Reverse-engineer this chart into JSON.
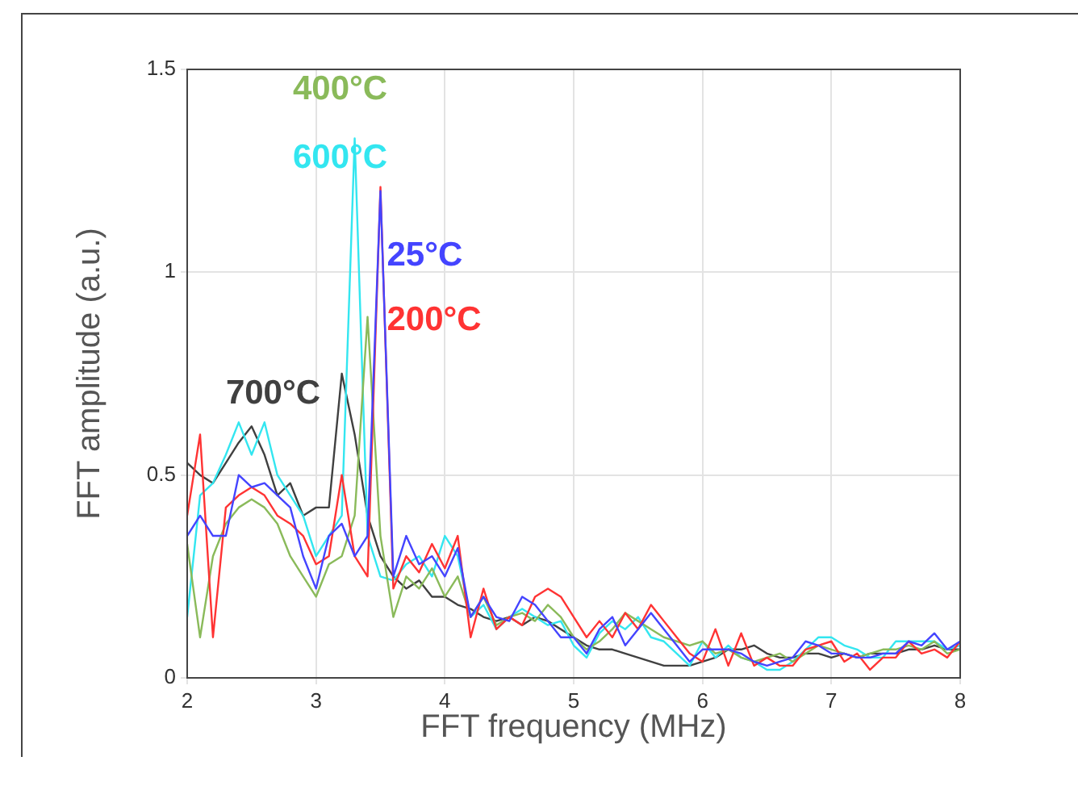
{
  "chart_data": {
    "type": "line",
    "xlabel": "FFT frequency (MHz)",
    "ylabel": "FFT amplitude (a.u.)",
    "x": [
      2.0,
      2.1,
      2.2,
      2.3,
      2.4,
      2.5,
      2.6,
      2.7,
      2.8,
      2.9,
      3.0,
      3.1,
      3.2,
      3.3,
      3.4,
      3.5,
      3.6,
      3.7,
      3.8,
      3.9,
      4.0,
      4.1,
      4.2,
      4.3,
      4.4,
      4.5,
      4.6,
      4.7,
      4.8,
      4.9,
      5.0,
      5.1,
      5.2,
      5.3,
      5.4,
      5.5,
      5.6,
      5.7,
      5.8,
      5.9,
      6.0,
      6.1,
      6.2,
      6.3,
      6.4,
      6.5,
      6.6,
      6.7,
      6.8,
      6.9,
      7.0,
      7.1,
      7.2,
      7.3,
      7.4,
      7.5,
      7.6,
      7.7,
      7.8,
      7.9,
      8.0
    ],
    "series": [
      {
        "name": "25°C",
        "color": "#4444ff",
        "values": [
          0.35,
          0.4,
          0.35,
          0.35,
          0.5,
          0.47,
          0.48,
          0.45,
          0.42,
          0.3,
          0.22,
          0.35,
          0.38,
          0.3,
          0.35,
          1.2,
          0.25,
          0.35,
          0.28,
          0.3,
          0.25,
          0.32,
          0.15,
          0.2,
          0.15,
          0.14,
          0.2,
          0.18,
          0.14,
          0.1,
          0.1,
          0.06,
          0.12,
          0.15,
          0.08,
          0.12,
          0.16,
          0.12,
          0.08,
          0.04,
          0.07,
          0.07,
          0.07,
          0.06,
          0.04,
          0.03,
          0.04,
          0.05,
          0.09,
          0.08,
          0.06,
          0.06,
          0.05,
          0.05,
          0.06,
          0.06,
          0.09,
          0.08,
          0.11,
          0.07,
          0.09
        ]
      },
      {
        "name": "200°C",
        "color": "#ff3333",
        "values": [
          0.4,
          0.6,
          0.1,
          0.42,
          0.45,
          0.47,
          0.45,
          0.4,
          0.38,
          0.35,
          0.28,
          0.3,
          0.5,
          0.3,
          0.25,
          1.21,
          0.22,
          0.3,
          0.26,
          0.33,
          0.27,
          0.35,
          0.1,
          0.22,
          0.12,
          0.15,
          0.13,
          0.2,
          0.22,
          0.2,
          0.15,
          0.1,
          0.14,
          0.1,
          0.16,
          0.12,
          0.18,
          0.14,
          0.1,
          0.06,
          0.04,
          0.12,
          0.03,
          0.11,
          0.03,
          0.05,
          0.03,
          0.03,
          0.07,
          0.08,
          0.09,
          0.04,
          0.06,
          0.02,
          0.05,
          0.05,
          0.09,
          0.06,
          0.07,
          0.05,
          0.09
        ]
      },
      {
        "name": "400°C",
        "color": "#8aba5a",
        "values": [
          0.33,
          0.1,
          0.3,
          0.38,
          0.42,
          0.44,
          0.42,
          0.38,
          0.3,
          0.25,
          0.2,
          0.28,
          0.3,
          0.4,
          0.89,
          0.35,
          0.15,
          0.25,
          0.22,
          0.27,
          0.2,
          0.25,
          0.15,
          0.2,
          0.13,
          0.15,
          0.16,
          0.14,
          0.18,
          0.15,
          0.1,
          0.07,
          0.09,
          0.12,
          0.16,
          0.14,
          0.12,
          0.1,
          0.09,
          0.08,
          0.09,
          0.06,
          0.07,
          0.05,
          0.04,
          0.05,
          0.06,
          0.04,
          0.06,
          0.08,
          0.07,
          0.06,
          0.05,
          0.06,
          0.07,
          0.07,
          0.08,
          0.07,
          0.09,
          0.06,
          0.07
        ]
      },
      {
        "name": "600°C",
        "color": "#33e6f0",
        "values": [
          0.15,
          0.45,
          0.48,
          0.55,
          0.63,
          0.55,
          0.63,
          0.5,
          0.45,
          0.4,
          0.3,
          0.35,
          0.4,
          1.33,
          0.35,
          0.25,
          0.24,
          0.28,
          0.3,
          0.25,
          0.35,
          0.3,
          0.15,
          0.18,
          0.12,
          0.15,
          0.17,
          0.15,
          0.13,
          0.14,
          0.08,
          0.05,
          0.11,
          0.14,
          0.12,
          0.15,
          0.1,
          0.09,
          0.06,
          0.03,
          0.09,
          0.05,
          0.08,
          0.05,
          0.04,
          0.02,
          0.02,
          0.04,
          0.07,
          0.1,
          0.1,
          0.08,
          0.07,
          0.05,
          0.05,
          0.09,
          0.09,
          0.09,
          0.09,
          0.07,
          0.08
        ]
      },
      {
        "name": "700°C",
        "color": "#404040",
        "values": [
          0.53,
          0.5,
          0.48,
          0.53,
          0.58,
          0.62,
          0.55,
          0.45,
          0.48,
          0.4,
          0.42,
          0.42,
          0.75,
          0.6,
          0.4,
          0.3,
          0.25,
          0.22,
          0.24,
          0.2,
          0.2,
          0.18,
          0.17,
          0.15,
          0.14,
          0.15,
          0.13,
          0.15,
          0.14,
          0.12,
          0.1,
          0.08,
          0.07,
          0.07,
          0.06,
          0.05,
          0.04,
          0.03,
          0.03,
          0.03,
          0.04,
          0.05,
          0.07,
          0.07,
          0.08,
          0.06,
          0.05,
          0.05,
          0.06,
          0.06,
          0.05,
          0.06,
          0.05,
          0.06,
          0.06,
          0.06,
          0.07,
          0.07,
          0.08,
          0.07,
          0.07
        ]
      }
    ],
    "xlim": [
      2,
      8
    ],
    "xticks": [
      2,
      3,
      4,
      5,
      6,
      7,
      8
    ],
    "ylim": [
      0,
      1.5
    ],
    "yticks": [
      0,
      0.5,
      1,
      1.5
    ],
    "grid": true,
    "legend": false,
    "marker": "none",
    "line_style": "solid"
  }
}
